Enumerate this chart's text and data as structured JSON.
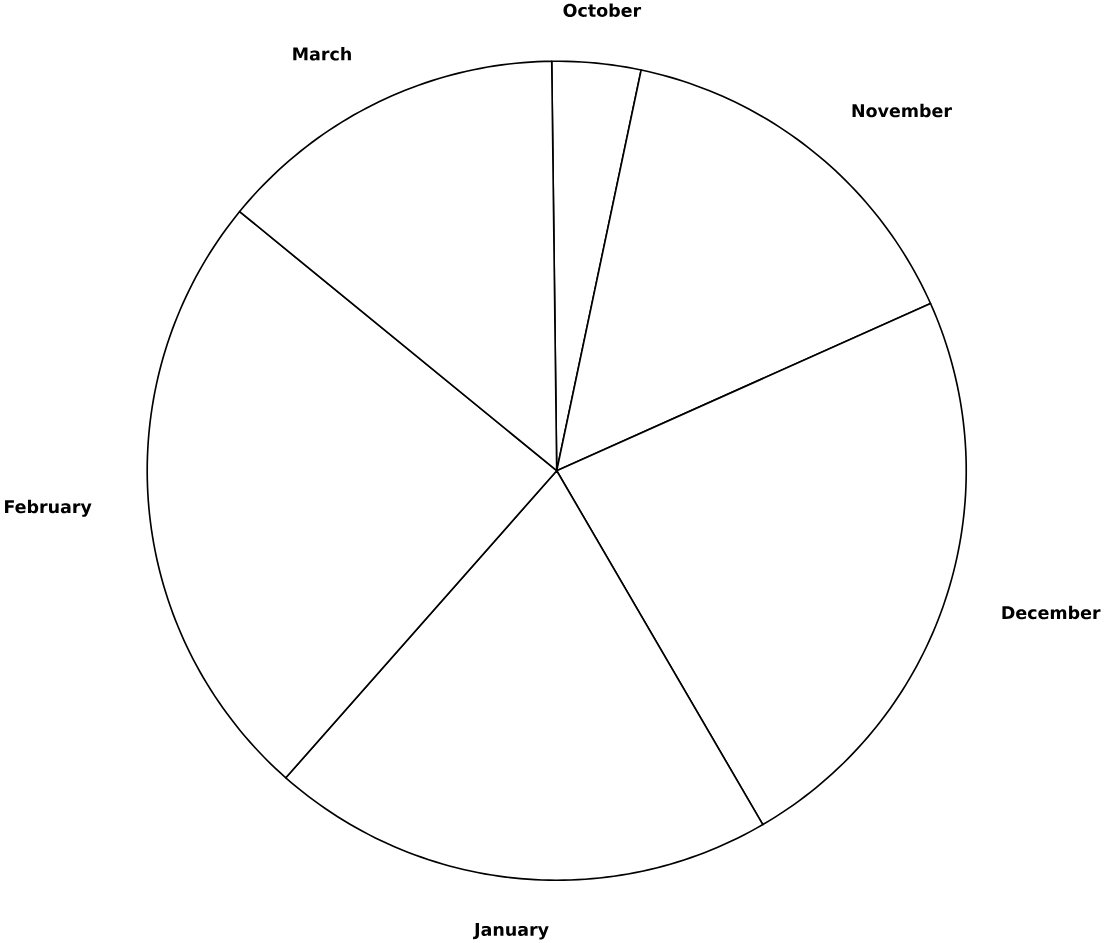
{
  "chart_data": {
    "type": "pie",
    "categories": [
      "October",
      "November",
      "December",
      "January",
      "February",
      "March"
    ],
    "values": [
      3.5,
      15.0,
      23.3,
      19.9,
      24.4,
      13.9
    ],
    "colors": [
      "#ffffff",
      "#ffffff",
      "#ffffff",
      "#ffffff",
      "#ffffff",
      "#ffffff"
    ]
  }
}
